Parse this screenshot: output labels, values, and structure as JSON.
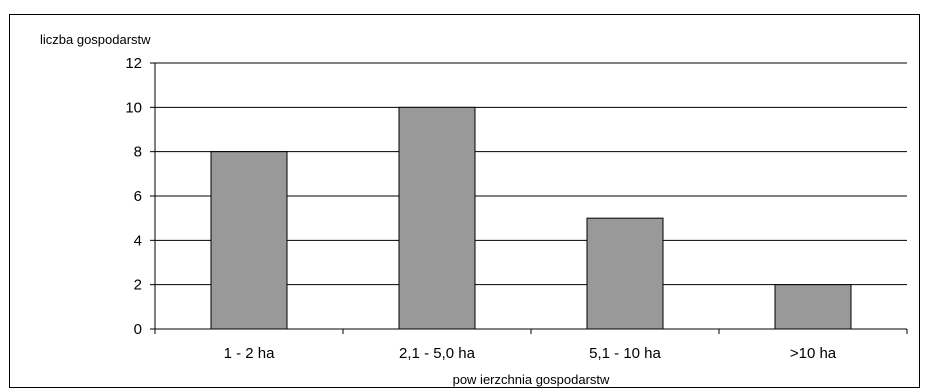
{
  "chart_data": {
    "type": "bar",
    "categories": [
      "1 - 2 ha",
      "2,1 - 5,0 ha",
      "5,1 - 10 ha",
      ">10 ha"
    ],
    "values": [
      8,
      10,
      5,
      2
    ],
    "xlabel": "pow ierzchnia gospodarstw",
    "ylabel": "liczba gospodarstw",
    "ylim": [
      0,
      12
    ],
    "yticks": [
      0,
      2,
      4,
      6,
      8,
      10,
      12
    ],
    "grid": true,
    "legend": "none",
    "bar_color": "#999999",
    "bar_edge_color": "#000000"
  }
}
